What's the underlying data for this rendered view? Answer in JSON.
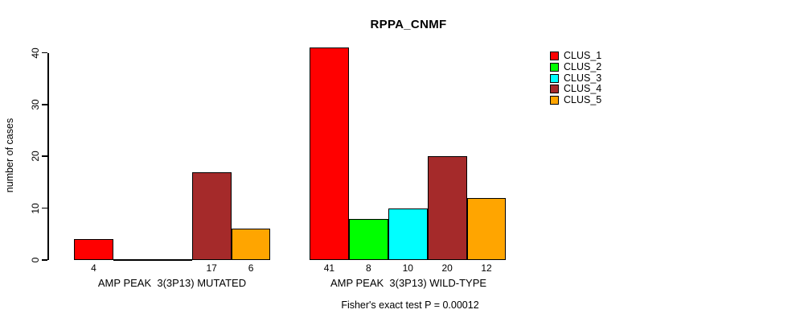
{
  "title": "RPPA_CNMF",
  "y_axis": {
    "label": "number of cases",
    "ticks": [
      0,
      10,
      20,
      30,
      40
    ]
  },
  "footnote": "Fisher's exact test P = 0.00012",
  "chart_data": {
    "type": "bar",
    "title": "RPPA_CNMF",
    "xlabel": "",
    "ylabel": "number of cases",
    "ylim": [
      0,
      40
    ],
    "yticks": [
      0,
      10,
      20,
      30,
      40
    ],
    "grid": false,
    "legend_position": "right",
    "bar_borders": "#000000",
    "categories": [
      "AMP PEAK  3(3P13) MUTATED",
      "AMP PEAK  3(3P13) WILD-TYPE"
    ],
    "series": [
      {
        "name": "CLUS_1",
        "color": "#FF0000",
        "values": [
          4,
          41
        ]
      },
      {
        "name": "CLUS_2",
        "color": "#00FF00",
        "values": [
          0,
          8
        ]
      },
      {
        "name": "CLUS_3",
        "color": "#00FFFF",
        "values": [
          0,
          10
        ]
      },
      {
        "name": "CLUS_4",
        "color": "#A52A2A",
        "values": [
          17,
          20
        ]
      },
      {
        "name": "CLUS_5",
        "color": "#FFA500",
        "values": [
          6,
          12
        ]
      }
    ],
    "bar_value_labels_shown": true,
    "annotation": "Fisher's exact test P = 0.00012"
  }
}
